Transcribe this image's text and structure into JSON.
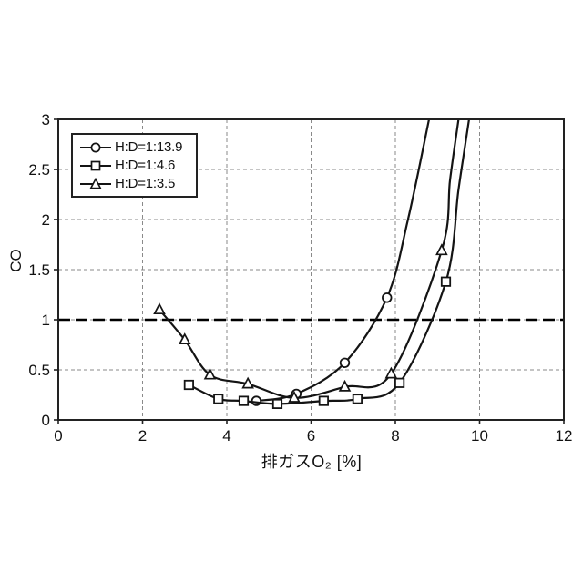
{
  "chart_data": {
    "type": "line",
    "title": "",
    "xlabel": "排ガスO₂ [%]",
    "ylabel": "CO",
    "xlim": [
      0,
      12
    ],
    "ylim": [
      0,
      3
    ],
    "xticks": [
      0,
      2,
      4,
      6,
      8,
      10,
      12
    ],
    "yticks": [
      0,
      0.5,
      1,
      1.5,
      2,
      2.5,
      3
    ],
    "grid": true,
    "gridline_color": "#8a8a8a",
    "line_color": "#141414",
    "reference_line": {
      "y": 1.0,
      "style": "heavy-dashed-black"
    },
    "legend_position": "top-left",
    "series": [
      {
        "name": "H:D=1:13.9",
        "marker": "circle",
        "points": [
          [
            4.7,
            0.19
          ],
          [
            5.65,
            0.26
          ],
          [
            6.8,
            0.57
          ],
          [
            7.8,
            1.22
          ]
        ],
        "tail": [
          [
            8.3,
            2.0
          ],
          [
            8.8,
            3.0
          ]
        ]
      },
      {
        "name": "H:D=1:4.6",
        "marker": "square",
        "points": [
          [
            3.1,
            0.35
          ],
          [
            3.8,
            0.21
          ],
          [
            4.4,
            0.19
          ],
          [
            5.2,
            0.16
          ],
          [
            6.3,
            0.19
          ],
          [
            7.1,
            0.21
          ],
          [
            8.1,
            0.37
          ],
          [
            9.2,
            1.38
          ]
        ],
        "tail": [
          [
            9.5,
            2.3
          ],
          [
            9.75,
            3.0
          ]
        ]
      },
      {
        "name": "H:D=1:3.5",
        "marker": "triangle",
        "points": [
          [
            2.4,
            1.1
          ],
          [
            3.0,
            0.8
          ],
          [
            3.6,
            0.45
          ],
          [
            4.5,
            0.36
          ],
          [
            5.6,
            0.22
          ],
          [
            6.8,
            0.33
          ],
          [
            7.9,
            0.46
          ],
          [
            9.1,
            1.69
          ]
        ],
        "tail": [
          [
            9.3,
            2.4
          ],
          [
            9.5,
            3.0
          ]
        ]
      }
    ]
  }
}
